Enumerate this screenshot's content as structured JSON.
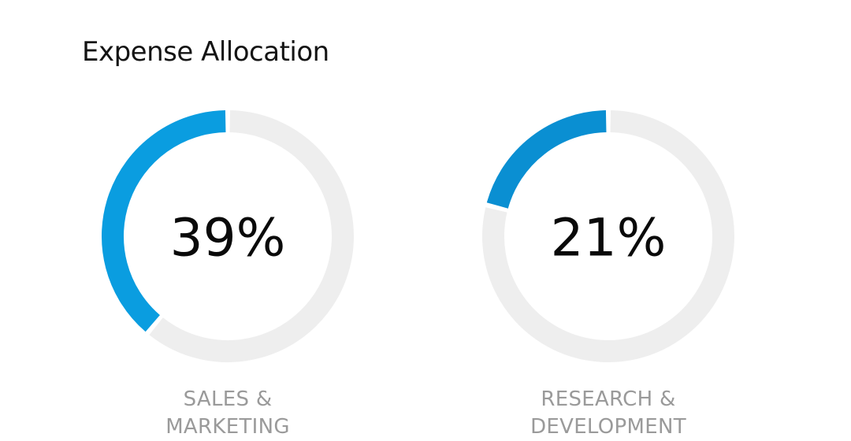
{
  "chart_data": {
    "type": "pie",
    "title": "Expense Allocation",
    "gauges": [
      {
        "name_lines": [
          "SALES &",
          "MARKETING"
        ],
        "value": 39,
        "value_label": "39%",
        "color": "#0a9de0"
      },
      {
        "name_lines": [
          "RESEARCH &",
          "DEVELOPMENT"
        ],
        "value": 21,
        "value_label": "21%",
        "color": "#0a8fd2"
      }
    ],
    "track_color": "#eeeeee"
  }
}
